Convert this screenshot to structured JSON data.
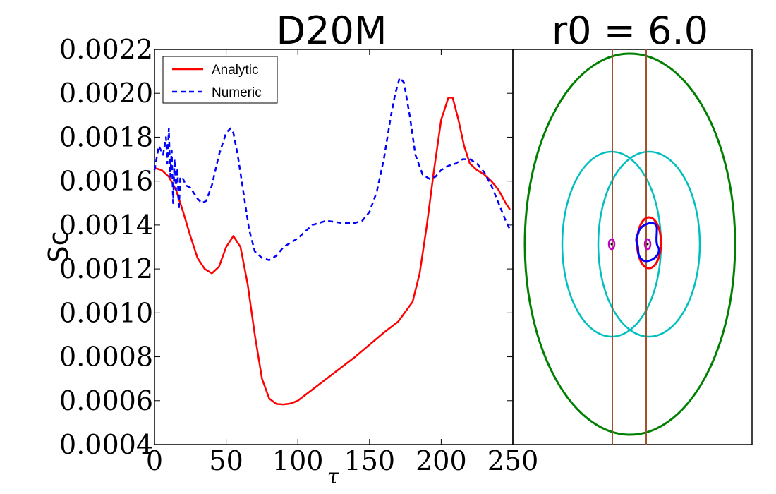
{
  "chart_data": [
    {
      "type": "line",
      "title": "D20M",
      "xlabel": "τ",
      "ylabel": "Sc",
      "xlim": [
        0,
        250
      ],
      "ylim": [
        0.0004,
        0.0022
      ],
      "xticks": [
        0,
        50,
        100,
        150,
        200,
        250
      ],
      "xtick_labels": [
        "0",
        "50",
        "100",
        "150",
        "200",
        "250"
      ],
      "yticks": [
        0.0004,
        0.0006,
        0.0008,
        0.001,
        0.0012,
        0.0014,
        0.0016,
        0.0018,
        0.002,
        0.0022
      ],
      "ytick_labels": [
        "0.0004",
        "0.0006",
        "0.0008",
        "0.0010",
        "0.0012",
        "0.0014",
        "0.0016",
        "0.0018",
        "0.0020",
        "0.0022"
      ],
      "legend_position": "top-left",
      "series": [
        {
          "name": "Analytic",
          "color": "#ff0000",
          "style": "solid",
          "x": [
            0,
            5,
            10,
            15,
            20,
            25,
            30,
            35,
            40,
            45,
            50,
            55,
            60,
            65,
            70,
            75,
            80,
            85,
            90,
            95,
            100,
            110,
            120,
            130,
            140,
            150,
            160,
            170,
            180,
            185,
            190,
            195,
            200,
            205,
            208,
            212,
            216,
            220,
            225,
            230,
            235,
            240,
            245,
            248
          ],
          "y": [
            0.00166,
            0.00165,
            0.00162,
            0.00156,
            0.00146,
            0.00135,
            0.00125,
            0.0012,
            0.00118,
            0.00121,
            0.0013,
            0.00135,
            0.0013,
            0.00113,
            0.0009,
            0.0007,
            0.00061,
            0.000585,
            0.000583,
            0.000587,
            0.0006,
            0.00065,
            0.0007,
            0.00075,
            0.0008,
            0.000855,
            0.00091,
            0.00096,
            0.00105,
            0.00118,
            0.0014,
            0.00165,
            0.00188,
            0.00198,
            0.00198,
            0.00188,
            0.00176,
            0.00168,
            0.00165,
            0.00163,
            0.0016,
            0.00156,
            0.0015,
            0.00147
          ]
        },
        {
          "name": "Numeric",
          "color": "#0000ff",
          "style": "dashed",
          "x": [
            0,
            3,
            6,
            8,
            9,
            10,
            11,
            12,
            13,
            14,
            15,
            16,
            17,
            18,
            20,
            22,
            25,
            28,
            30,
            33,
            36,
            40,
            45,
            50,
            53,
            55,
            58,
            62,
            66,
            70,
            75,
            80,
            85,
            90,
            100,
            110,
            120,
            130,
            140,
            145,
            150,
            155,
            160,
            165,
            168,
            171,
            174,
            178,
            182,
            187,
            192,
            196,
            200,
            205,
            210,
            215,
            220,
            225,
            230,
            235,
            240,
            245,
            248
          ],
          "y": [
            0.00165,
            0.00176,
            0.00172,
            0.0018,
            0.00168,
            0.00184,
            0.00162,
            0.00174,
            0.0015,
            0.0017,
            0.00156,
            0.00166,
            0.00147,
            0.00162,
            0.00161,
            0.00158,
            0.00157,
            0.00154,
            0.00152,
            0.0015,
            0.00151,
            0.00158,
            0.00172,
            0.00182,
            0.00184,
            0.00182,
            0.00172,
            0.00155,
            0.00138,
            0.00128,
            0.00125,
            0.00124,
            0.00126,
            0.0013,
            0.00134,
            0.0014,
            0.00142,
            0.00141,
            0.00141,
            0.00142,
            0.00146,
            0.00155,
            0.0017,
            0.0019,
            0.002,
            0.00207,
            0.00205,
            0.0019,
            0.00172,
            0.00163,
            0.00161,
            0.00162,
            0.00165,
            0.00167,
            0.00168,
            0.0017,
            0.0017,
            0.00168,
            0.00164,
            0.00158,
            0.0015,
            0.00142,
            0.00138
          ]
        }
      ]
    },
    {
      "type": "diagram",
      "title": "r0 = 6.0",
      "elements": [
        {
          "name": "outer-ellipse",
          "color": "#008000"
        },
        {
          "name": "left-cyan-ellipse",
          "color": "#00bfbf"
        },
        {
          "name": "right-cyan-ellipse",
          "color": "#00bfbf"
        },
        {
          "name": "left-vertical-line",
          "color": "#a0522d"
        },
        {
          "name": "right-vertical-line",
          "color": "#a0522d"
        },
        {
          "name": "red-ellipse",
          "color": "#ff0000"
        },
        {
          "name": "blue-orbit",
          "color": "#0000ff"
        },
        {
          "name": "left-magenta-ring",
          "color": "#bf00bf"
        },
        {
          "name": "right-magenta-ring",
          "color": "#bf00bf"
        }
      ]
    }
  ]
}
